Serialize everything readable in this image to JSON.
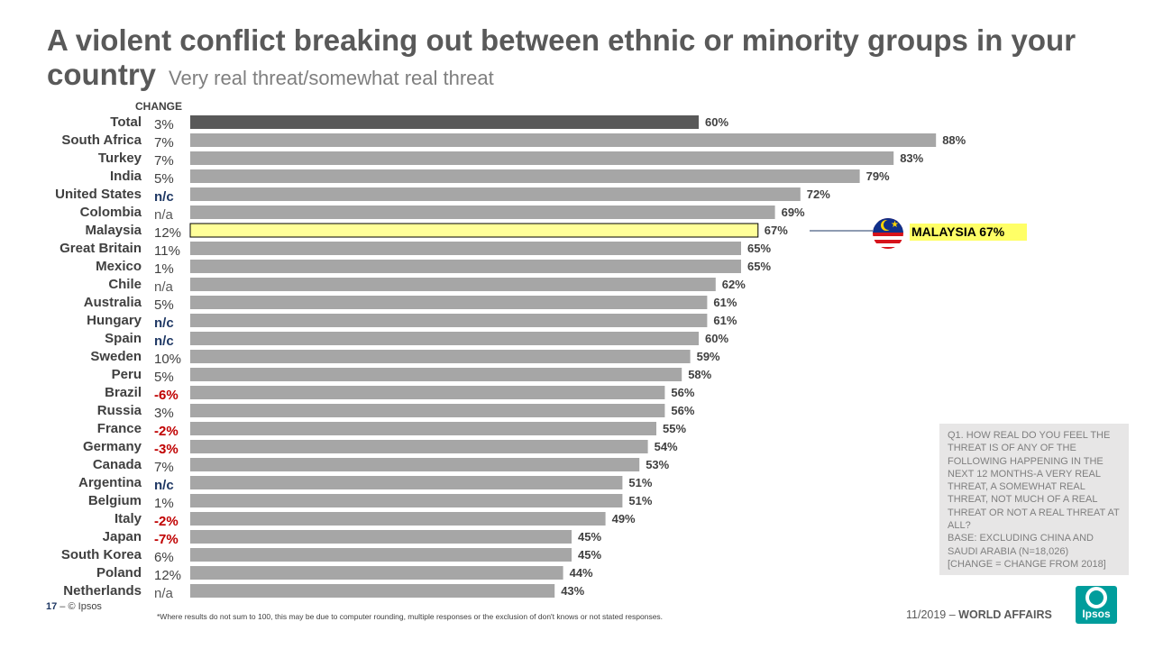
{
  "header": {
    "title": "A violent conflict breaking out between ethnic or minority groups in your country",
    "subtitle": "Very real threat/somewhat real threat",
    "change_header": "CHANGE"
  },
  "chart_data": {
    "type": "bar",
    "orientation": "horizontal",
    "unit": "%",
    "xlim": [
      0,
      100
    ],
    "categories": [
      "Total",
      "South Africa",
      "Turkey",
      "India",
      "United States",
      "Colombia",
      "Malaysia",
      "Great Britain",
      "Mexico",
      "Chile",
      "Australia",
      "Hungary",
      "Spain",
      "Sweden",
      "Peru",
      "Brazil",
      "Russia",
      "France",
      "Germany",
      "Canada",
      "Argentina",
      "Belgium",
      "Italy",
      "Japan",
      "South Korea",
      "Poland",
      "Netherlands"
    ],
    "values": [
      60,
      88,
      83,
      79,
      72,
      69,
      67,
      65,
      65,
      62,
      61,
      61,
      60,
      59,
      58,
      56,
      56,
      55,
      54,
      53,
      51,
      51,
      49,
      45,
      45,
      44,
      43
    ],
    "value_labels": [
      "60%",
      "88%",
      "83%",
      "79%",
      "72%",
      "69%",
      "67%",
      "65%",
      "65%",
      "62%",
      "61%",
      "61%",
      "60%",
      "59%",
      "58%",
      "56%",
      "56%",
      "55%",
      "54%",
      "53%",
      "51%",
      "51%",
      "49%",
      "45%",
      "45%",
      "44%",
      "43%"
    ],
    "change": [
      "3%",
      "7%",
      "7%",
      "5%",
      "n/c",
      "n/a",
      "12%",
      "11%",
      "1%",
      "n/a",
      "5%",
      "n/c",
      "n/c",
      "10%",
      "5%",
      "-6%",
      "3%",
      "-2%",
      "-3%",
      "7%",
      "n/c",
      "1%",
      "-2%",
      "-7%",
      "6%",
      "12%",
      "n/a"
    ],
    "highlight": "Malaysia",
    "colors": {
      "total": "#595959",
      "default": "#a6a6a6",
      "highlight": "#ffff99",
      "negative_change": "#c00000",
      "no_change": "#1f3864"
    }
  },
  "callout": {
    "label": "MALAYSIA  67%",
    "flag_icon": "malaysia-flag-icon"
  },
  "notes": {
    "question": "Q1. How real do you feel the threat is of any of the following happening in the next 12 months-A very real threat, a somewhat real threat, not much of a real threat or not a real threat at all?",
    "base": "Base: Excluding China and Saudi Arabia  (N=18,026)",
    "change_note": "[Change = change from 2018]"
  },
  "footer": {
    "page_number": "17",
    "separator": " – ",
    "copyright": "© Ipsos",
    "footnote": "*Where results do not sum to 100, this may be due to computer rounding, multiple responses or the exclusion of don't knows or not stated responses.",
    "date": "11/2019",
    "dash": " – ",
    "report": "WORLD AFFAIRS",
    "logo_text": "Ipsos"
  }
}
